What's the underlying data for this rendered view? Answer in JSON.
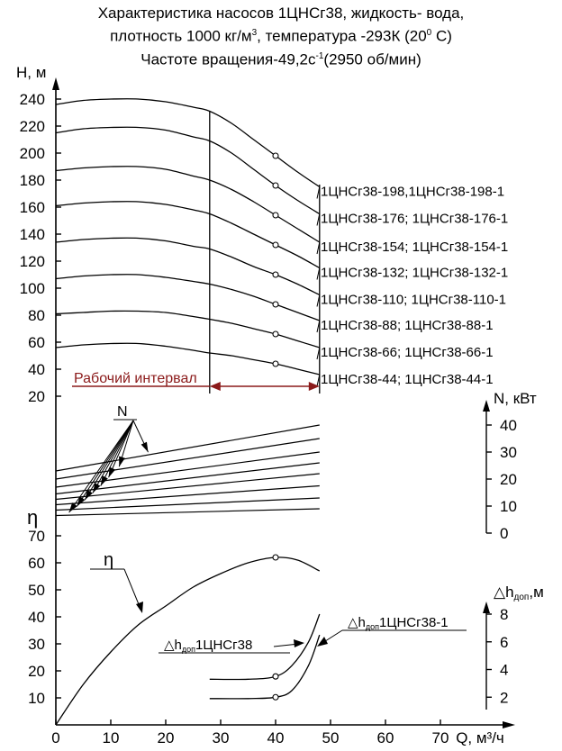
{
  "title": {
    "line1": "Характеристика насосов 1ЦНСг38, жидкость- вода,",
    "line2_prefix": "плотность 1000 кг/м",
    "line2_sup": "3",
    "line2_suffix": ", температура -293К (20",
    "line2_sup2": "0",
    "line2_end": " С)",
    "line3_prefix": "Частоте вращения-49,2с",
    "line3_sup": "-1",
    "line3_suffix": "(2950 об/мин)"
  },
  "chart_data": {
    "type": "line",
    "xlabel": "Q, м³/ч",
    "xlim": [
      0,
      70
    ],
    "x_ticks": [
      0,
      10,
      20,
      30,
      40,
      50,
      60,
      70
    ],
    "head": {
      "ylabel": "H, м",
      "ylim": [
        20,
        240
      ],
      "y_ticks": [
        240,
        220,
        200,
        180,
        160,
        140,
        120,
        100,
        80,
        60,
        40,
        20
      ],
      "operating_range_label": "Рабочий интервал",
      "operating_range": [
        28,
        48
      ],
      "marker_q": 40,
      "series": [
        {
          "name": "1ЦНСг38-198,1ЦНСг38-198-1",
          "x": [
            0,
            5,
            10,
            15,
            20,
            25,
            28,
            32,
            36,
            40,
            44,
            48
          ],
          "y": [
            236,
            239,
            240,
            240,
            238,
            234,
            231,
            222,
            210,
            198,
            186,
            175
          ]
        },
        {
          "name": "1ЦНСг38-176; 1ЦНСг38-176-1",
          "x": [
            0,
            5,
            10,
            15,
            20,
            25,
            28,
            32,
            36,
            40,
            44,
            48
          ],
          "y": [
            215,
            218,
            219,
            219,
            217,
            212,
            209,
            200,
            188,
            176,
            165,
            155
          ]
        },
        {
          "name": "1ЦНСг38-154; 1ЦНСг38-154-1",
          "x": [
            0,
            5,
            10,
            15,
            20,
            25,
            28,
            32,
            36,
            40,
            44,
            48
          ],
          "y": [
            187,
            189,
            190,
            190,
            188,
            183,
            180,
            173,
            164,
            154,
            144,
            134
          ]
        },
        {
          "name": "1ЦНСг38-132; 1ЦНСг38-132-1",
          "x": [
            0,
            5,
            10,
            15,
            20,
            25,
            28,
            32,
            36,
            40,
            44,
            48
          ],
          "y": [
            161,
            163,
            164,
            164,
            162,
            158,
            155,
            148,
            140,
            132,
            124,
            115
          ]
        },
        {
          "name": "1ЦНСг38-110; 1ЦНСг38-110-1",
          "x": [
            0,
            5,
            10,
            15,
            20,
            25,
            28,
            32,
            36,
            40,
            44,
            48
          ],
          "y": [
            134,
            136,
            137,
            137,
            135,
            131,
            129,
            123,
            116,
            110,
            103,
            95
          ]
        },
        {
          "name": "1ЦНСг38-88; 1ЦНСг38-88-1",
          "x": [
            0,
            5,
            10,
            15,
            20,
            25,
            28,
            32,
            36,
            40,
            44,
            48
          ],
          "y": [
            107,
            109,
            110,
            110,
            108,
            105,
            103,
            99,
            94,
            88,
            82,
            76
          ]
        },
        {
          "name": "1ЦНСг38-66; 1ЦНСг38-66-1",
          "x": [
            0,
            5,
            10,
            15,
            20,
            25,
            28,
            32,
            36,
            40,
            44,
            48
          ],
          "y": [
            81,
            82,
            83,
            83,
            82,
            79,
            77,
            74,
            70,
            66,
            61,
            56
          ]
        },
        {
          "name": "1ЦНСг38-44; 1ЦНСг38-44-1",
          "x": [
            0,
            5,
            10,
            15,
            20,
            25,
            28,
            32,
            36,
            40,
            44,
            48
          ],
          "y": [
            56,
            58,
            59,
            59,
            57,
            54,
            52,
            50,
            47,
            44,
            40,
            36
          ]
        }
      ]
    },
    "power": {
      "ylabel": "N, кВт",
      "ylim": [
        0,
        40
      ],
      "y_ticks": [
        40,
        30,
        20,
        10,
        0
      ],
      "label": "N",
      "lines": [
        {
          "x": [
            0,
            48
          ],
          "y": [
            23,
            40
          ]
        },
        {
          "x": [
            0,
            48
          ],
          "y": [
            20,
            35
          ]
        },
        {
          "x": [
            0,
            48
          ],
          "y": [
            17,
            30
          ]
        },
        {
          "x": [
            0,
            48
          ],
          "y": [
            14.5,
            26
          ]
        },
        {
          "x": [
            0,
            48
          ],
          "y": [
            12.5,
            22
          ]
        },
        {
          "x": [
            0,
            48
          ],
          "y": [
            10.5,
            17.5
          ]
        },
        {
          "x": [
            0,
            48
          ],
          "y": [
            8.5,
            13
          ]
        },
        {
          "x": [
            0,
            48
          ],
          "y": [
            6.5,
            9
          ]
        }
      ]
    },
    "efficiency": {
      "ylabel": "η",
      "ylim": [
        0,
        70
      ],
      "y_ticks": [
        70,
        60,
        50,
        40,
        30,
        20,
        10
      ],
      "label": "η",
      "x": [
        0,
        5,
        10,
        15,
        20,
        25,
        30,
        35,
        40,
        44,
        48
      ],
      "y": [
        0,
        15,
        27,
        37,
        44,
        51,
        56,
        60,
        62,
        61,
        57
      ]
    },
    "npsh": {
      "ylabel_main": "△h",
      "ylabel_sub": "доп",
      "ylabel_unit": ",м",
      "ylim": [
        0,
        10
      ],
      "y_ticks": [
        8,
        6,
        4,
        2
      ],
      "series": [
        {
          "name_main": "△h",
          "name_sub": "доп",
          "name_suffix": "1ЦНСг38",
          "x": [
            28,
            35,
            40,
            43,
            46,
            48
          ],
          "y": [
            3.3,
            3.3,
            3.5,
            4.3,
            6,
            8
          ]
        },
        {
          "name_main": "△h",
          "name_sub": "доп",
          "name_suffix": "1ЦНСг38-1",
          "x": [
            28,
            35,
            40,
            43,
            46,
            48
          ],
          "y": [
            1.9,
            1.9,
            2.0,
            2.5,
            4.3,
            6.5
          ]
        }
      ]
    }
  }
}
